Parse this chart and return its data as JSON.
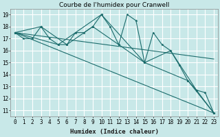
{
  "title": "Courbe de l'humidex pour Cranwell",
  "xlabel": "Humidex (Indice chaleur)",
  "xlim": [
    -0.5,
    23.5
  ],
  "ylim": [
    10.5,
    19.5
  ],
  "yticks": [
    11,
    12,
    13,
    14,
    15,
    16,
    17,
    18,
    19
  ],
  "xticks": [
    0,
    1,
    2,
    3,
    4,
    5,
    6,
    7,
    8,
    9,
    10,
    11,
    12,
    13,
    14,
    15,
    16,
    17,
    18,
    19,
    20,
    21,
    22,
    23
  ],
  "bg_color": "#c8e8e8",
  "grid_color": "#ffffff",
  "line_color": "#1a6b6b",
  "title_fontsize": 6.5,
  "label_fontsize": 6.5,
  "tick_fontsize": 5.5,
  "lines": [
    {
      "x": [
        0,
        1,
        2,
        3,
        4,
        5,
        6,
        7,
        8,
        9,
        10,
        11,
        12,
        13,
        14,
        15,
        16,
        17,
        18,
        19,
        20,
        21,
        22,
        23
      ],
      "y": [
        17.5,
        17.0,
        17.0,
        18.0,
        17.0,
        16.5,
        16.5,
        17.5,
        17.5,
        18.0,
        19.0,
        18.0,
        16.5,
        19.0,
        18.5,
        15.0,
        17.5,
        16.5,
        16.0,
        14.8,
        13.5,
        12.7,
        12.5,
        10.8
      ],
      "marker": true
    },
    {
      "x": [
        0,
        3,
        6,
        9,
        12,
        15,
        18,
        21,
        23
      ],
      "y": [
        17.5,
        18.0,
        16.5,
        18.0,
        16.5,
        15.0,
        16.0,
        12.7,
        10.8
      ],
      "marker": true
    },
    {
      "x": [
        0,
        5,
        10,
        15,
        20,
        23
      ],
      "y": [
        17.5,
        16.5,
        19.0,
        15.0,
        13.5,
        10.8
      ],
      "marker": true
    },
    {
      "x": [
        0,
        23
      ],
      "y": [
        17.5,
        10.8
      ],
      "marker": false
    },
    {
      "x": [
        0,
        23
      ],
      "y": [
        17.5,
        15.3
      ],
      "marker": false
    }
  ]
}
